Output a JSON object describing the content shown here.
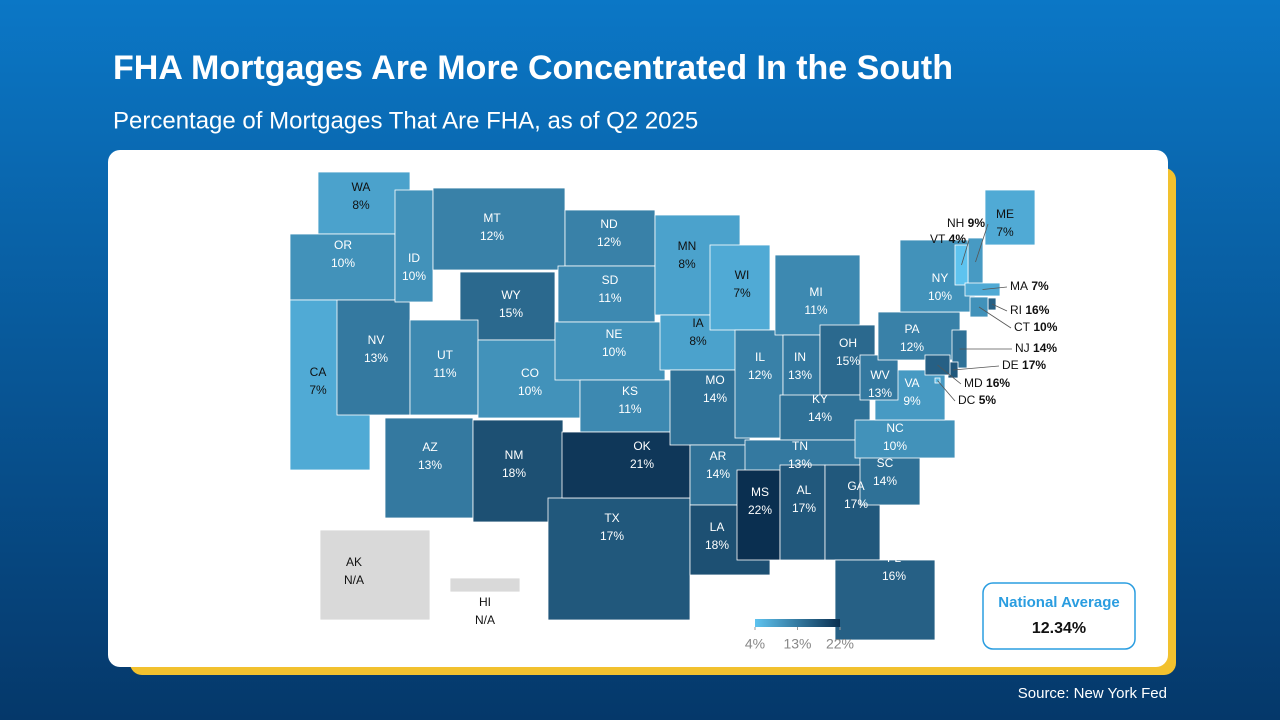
{
  "title": "FHA Mortgages Are More Concentrated In the South",
  "subtitle": "Percentage of Mortgages That Are FHA, as of Q2 2025",
  "source": "Source: New York Fed",
  "chart_data": {
    "type": "choropleth",
    "states": [
      {
        "code": "WA",
        "value": 8,
        "value_label": "8%"
      },
      {
        "code": "OR",
        "value": 10,
        "value_label": "10%"
      },
      {
        "code": "CA",
        "value": 7,
        "value_label": "7%"
      },
      {
        "code": "NV",
        "value": 13,
        "value_label": "13%"
      },
      {
        "code": "ID",
        "value": 10,
        "value_label": "10%"
      },
      {
        "code": "MT",
        "value": 12,
        "value_label": "12%"
      },
      {
        "code": "WY",
        "value": 15,
        "value_label": "15%"
      },
      {
        "code": "UT",
        "value": 11,
        "value_label": "11%"
      },
      {
        "code": "CO",
        "value": 10,
        "value_label": "10%"
      },
      {
        "code": "AZ",
        "value": 13,
        "value_label": "13%"
      },
      {
        "code": "NM",
        "value": 18,
        "value_label": "18%"
      },
      {
        "code": "ND",
        "value": 12,
        "value_label": "12%"
      },
      {
        "code": "SD",
        "value": 11,
        "value_label": "11%"
      },
      {
        "code": "NE",
        "value": 10,
        "value_label": "10%"
      },
      {
        "code": "KS",
        "value": 11,
        "value_label": "11%"
      },
      {
        "code": "TX",
        "value": 17,
        "value_label": "17%"
      },
      {
        "code": "OK",
        "value": 21,
        "value_label": "21%"
      },
      {
        "code": "MN",
        "value": 8,
        "value_label": "8%"
      },
      {
        "code": "IA",
        "value": 8,
        "value_label": "8%"
      },
      {
        "code": "MO",
        "value": 14,
        "value_label": "14%"
      },
      {
        "code": "AR",
        "value": 14,
        "value_label": "14%"
      },
      {
        "code": "LA",
        "value": 18,
        "value_label": "18%"
      },
      {
        "code": "WI",
        "value": 7,
        "value_label": "7%"
      },
      {
        "code": "IL",
        "value": 12,
        "value_label": "12%"
      },
      {
        "code": "MI",
        "value": 11,
        "value_label": "11%"
      },
      {
        "code": "IN",
        "value": 13,
        "value_label": "13%"
      },
      {
        "code": "OH",
        "value": 15,
        "value_label": "15%"
      },
      {
        "code": "KY",
        "value": 14,
        "value_label": "14%"
      },
      {
        "code": "TN",
        "value": 13,
        "value_label": "13%"
      },
      {
        "code": "MS",
        "value": 22,
        "value_label": "22%"
      },
      {
        "code": "AL",
        "value": 17,
        "value_label": "17%"
      },
      {
        "code": "GA",
        "value": 17,
        "value_label": "17%"
      },
      {
        "code": "FL",
        "value": 16,
        "value_label": "16%"
      },
      {
        "code": "SC",
        "value": 14,
        "value_label": "14%"
      },
      {
        "code": "NC",
        "value": 10,
        "value_label": "10%"
      },
      {
        "code": "VA",
        "value": 9,
        "value_label": "9%"
      },
      {
        "code": "WV",
        "value": 13,
        "value_label": "13%"
      },
      {
        "code": "PA",
        "value": 12,
        "value_label": "12%"
      },
      {
        "code": "NY",
        "value": 10,
        "value_label": "10%"
      },
      {
        "code": "ME",
        "value": 7,
        "value_label": "7%"
      },
      {
        "code": "NH",
        "value": 9,
        "value_label": "9%"
      },
      {
        "code": "VT",
        "value": 4,
        "value_label": "4%"
      },
      {
        "code": "MA",
        "value": 7,
        "value_label": "7%"
      },
      {
        "code": "RI",
        "value": 16,
        "value_label": "16%"
      },
      {
        "code": "CT",
        "value": 10,
        "value_label": "10%"
      },
      {
        "code": "NJ",
        "value": 14,
        "value_label": "14%"
      },
      {
        "code": "DE",
        "value": 17,
        "value_label": "17%"
      },
      {
        "code": "MD",
        "value": 16,
        "value_label": "16%"
      },
      {
        "code": "DC",
        "value": 5,
        "value_label": "5%"
      },
      {
        "code": "AK",
        "value": null,
        "value_label": "N/A"
      },
      {
        "code": "HI",
        "value": null,
        "value_label": "N/A"
      }
    ],
    "colorscale": {
      "range": [
        4,
        22
      ],
      "colors": [
        "#5ec3ef",
        "#0a2f50"
      ],
      "missing_color": "#d9d9d9",
      "ticks": [
        {
          "value": 4,
          "label": "4%"
        },
        {
          "value": 13,
          "label": "13%"
        },
        {
          "value": 22,
          "label": "22%"
        }
      ]
    },
    "national_average": {
      "title": "National Average",
      "value": 12.34,
      "value_label": "12.34%"
    }
  }
}
